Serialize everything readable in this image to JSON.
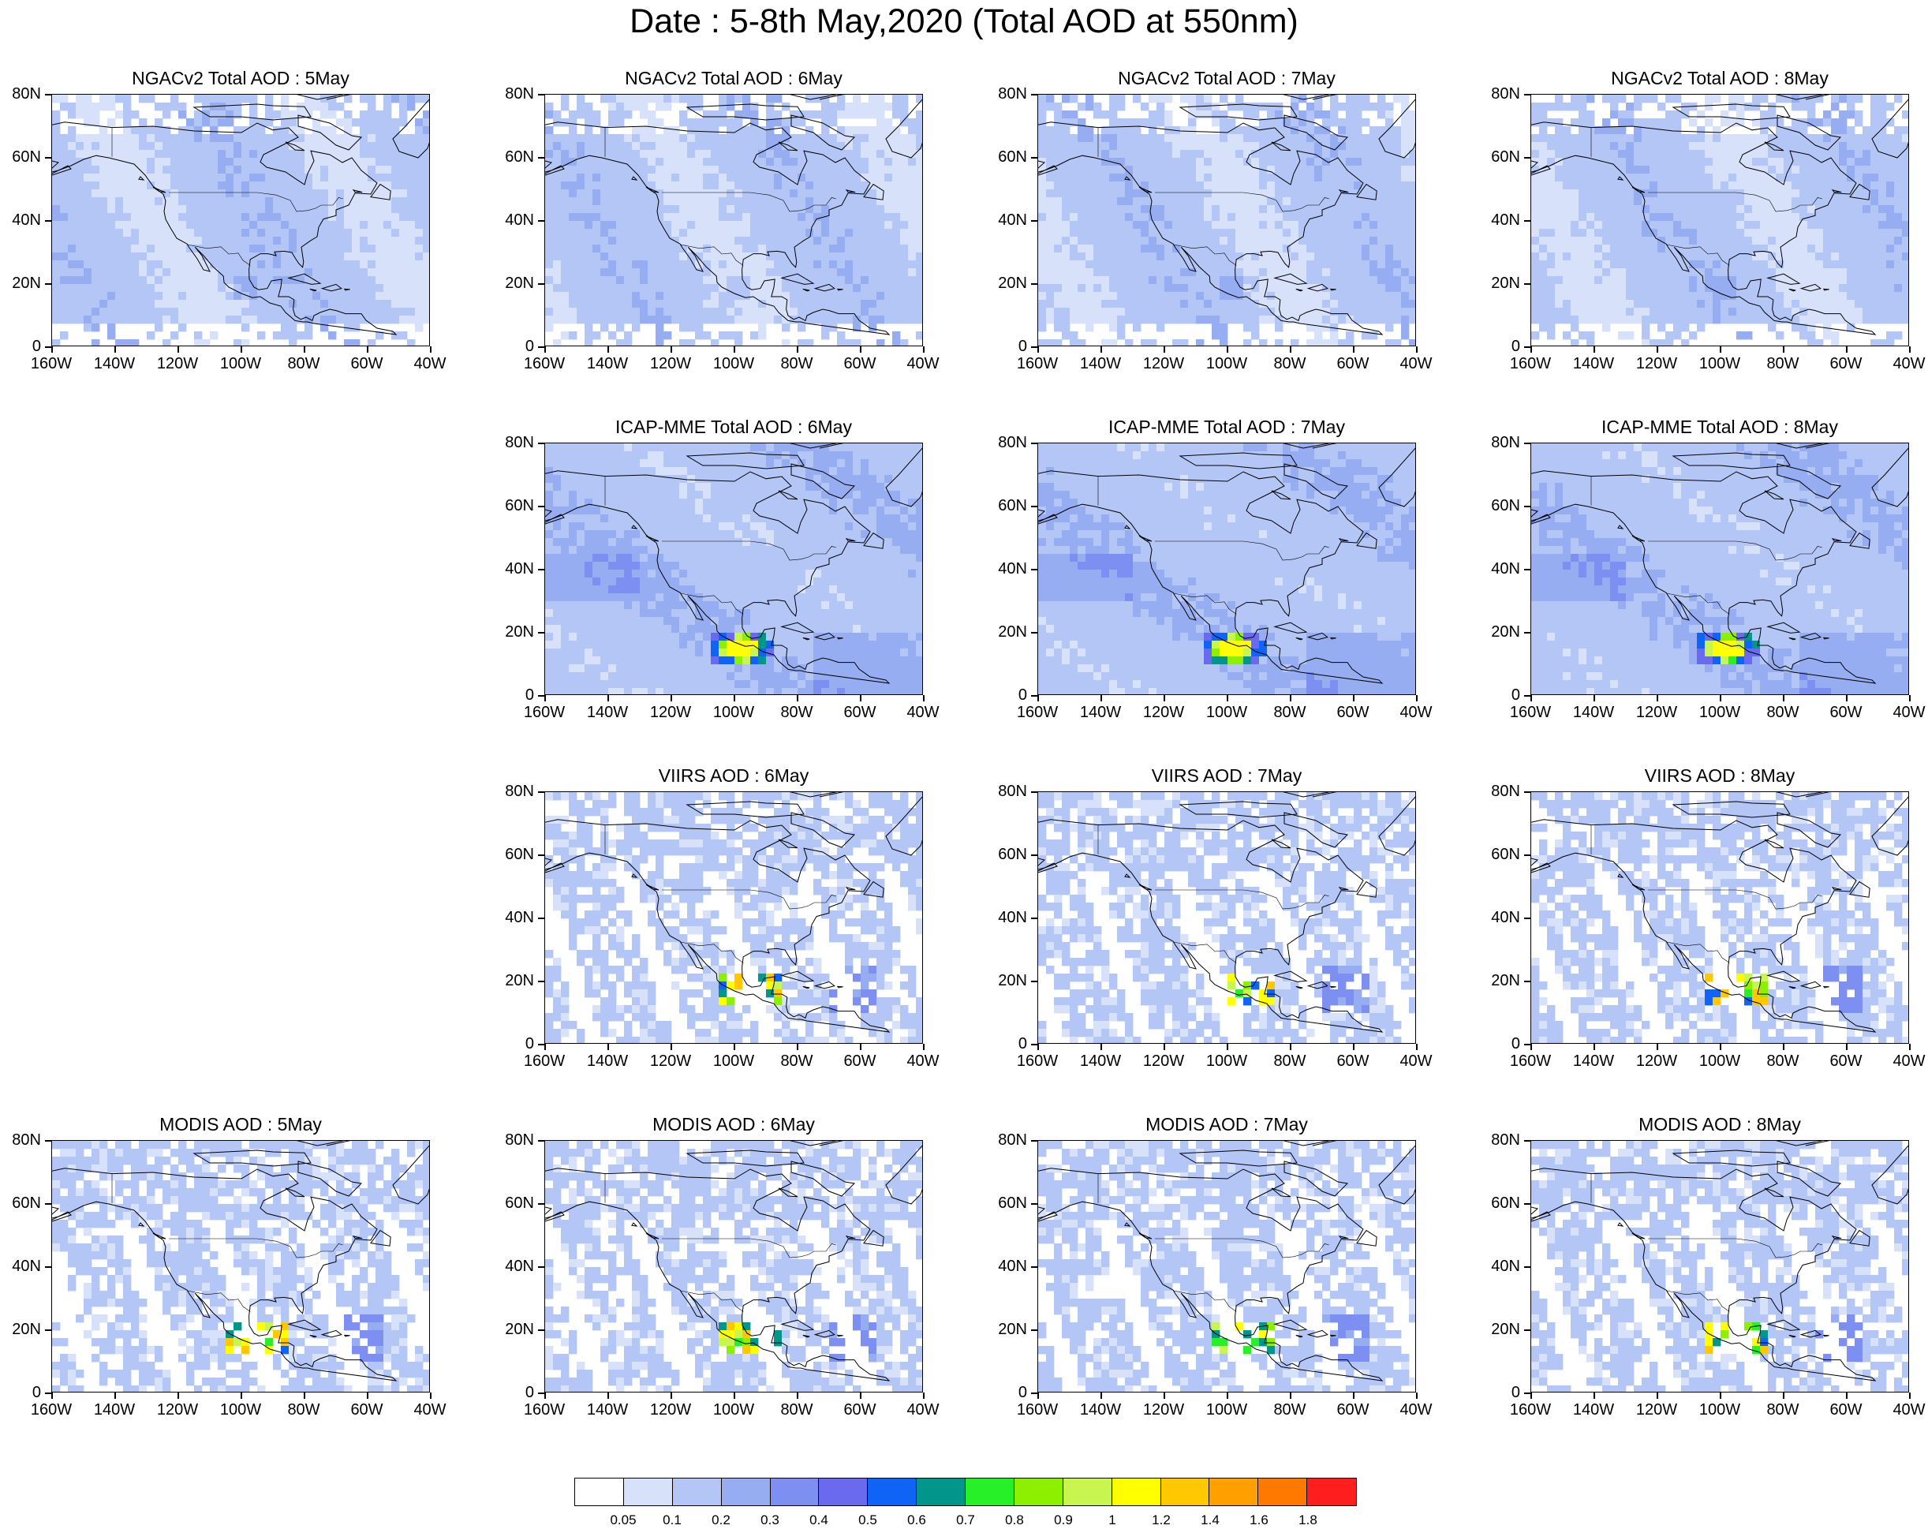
{
  "title": "Date : 5-8th May,2020 (Total AOD at 550nm)",
  "y_labels": [
    "80N",
    "60N",
    "40N",
    "20N",
    "0"
  ],
  "x_labels": [
    "160W",
    "140W",
    "120W",
    "100W",
    "80W",
    "60W",
    "40W"
  ],
  "panels": [
    {
      "id": "ngac-5",
      "row": 0,
      "col": 0,
      "title": "NGACv2 Total AOD : 5May",
      "model": "ngac"
    },
    {
      "id": "ngac-6",
      "row": 0,
      "col": 1,
      "title": "NGACv2 Total AOD : 6May",
      "model": "ngac"
    },
    {
      "id": "ngac-7",
      "row": 0,
      "col": 2,
      "title": "NGACv2 Total AOD : 7May",
      "model": "ngac"
    },
    {
      "id": "ngac-8",
      "row": 0,
      "col": 3,
      "title": "NGACv2 Total AOD : 8May",
      "model": "ngac"
    },
    {
      "id": "icap-6",
      "row": 1,
      "col": 1,
      "title": "ICAP-MME Total AOD : 6May",
      "model": "icap"
    },
    {
      "id": "icap-7",
      "row": 1,
      "col": 2,
      "title": "ICAP-MME Total AOD : 7May",
      "model": "icap"
    },
    {
      "id": "icap-8",
      "row": 1,
      "col": 3,
      "title": "ICAP-MME Total AOD : 8May",
      "model": "icap"
    },
    {
      "id": "viirs-6",
      "row": 2,
      "col": 1,
      "title": "VIIRS AOD : 6May",
      "model": "sat"
    },
    {
      "id": "viirs-7",
      "row": 2,
      "col": 2,
      "title": "VIIRS AOD : 7May",
      "model": "sat"
    },
    {
      "id": "viirs-8",
      "row": 2,
      "col": 3,
      "title": "VIIRS AOD : 8May",
      "model": "sat"
    },
    {
      "id": "modis-5",
      "row": 3,
      "col": 0,
      "title": "MODIS AOD : 5May",
      "model": "sat"
    },
    {
      "id": "modis-6",
      "row": 3,
      "col": 1,
      "title": "MODIS AOD : 6May",
      "model": "sat"
    },
    {
      "id": "modis-7",
      "row": 3,
      "col": 2,
      "title": "MODIS AOD : 7May",
      "model": "sat"
    },
    {
      "id": "modis-8",
      "row": 3,
      "col": 3,
      "title": "MODIS AOD : 8May",
      "model": "sat"
    }
  ],
  "colorbar": {
    "colors": [
      "#ffffff",
      "#d7e1fa",
      "#b4c6f6",
      "#96adf2",
      "#7d8ff0",
      "#6a6aee",
      "#0f64f5",
      "#00968c",
      "#28f028",
      "#8cf000",
      "#c8f550",
      "#ffff00",
      "#ffc800",
      "#ffa000",
      "#ff7800",
      "#ff1e1e"
    ],
    "labels": [
      "0.05",
      "0.1",
      "0.2",
      "0.3",
      "0.4",
      "0.5",
      "0.6",
      "0.7",
      "0.8",
      "0.9",
      "1",
      "1.2",
      "1.4",
      "1.6",
      "1.8"
    ]
  }
}
